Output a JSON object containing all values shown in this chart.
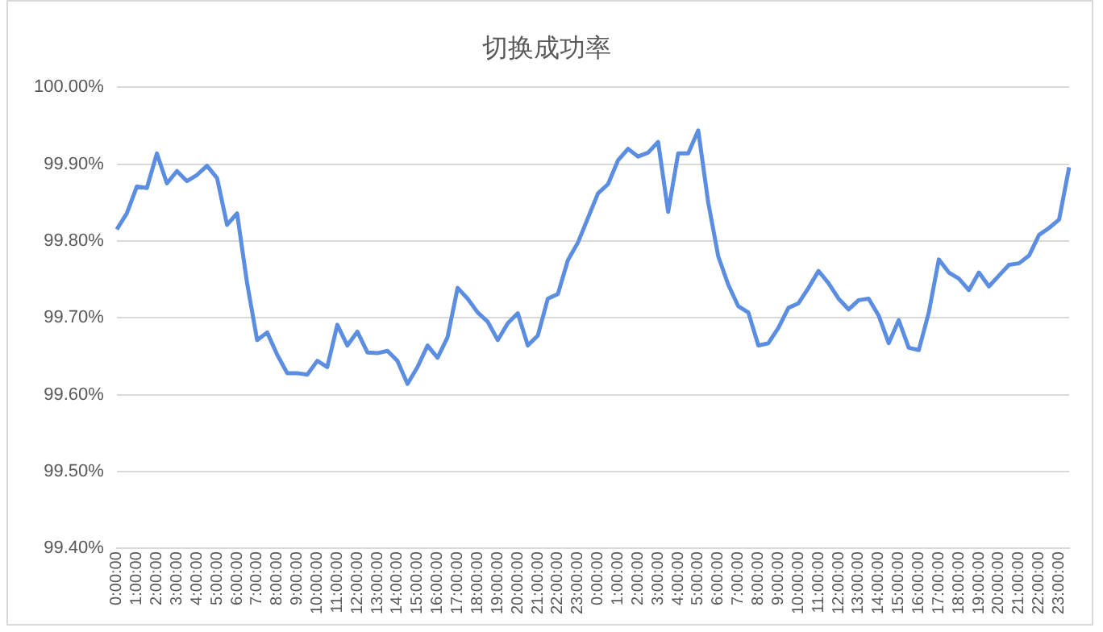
{
  "chart_data": {
    "type": "line",
    "title": "切换成功率",
    "categories": [
      "0:00:00",
      null,
      "1:00:00",
      null,
      "2:00:00",
      null,
      "3:00:00",
      null,
      "4:00:00",
      null,
      "5:00:00",
      null,
      "6:00:00",
      null,
      "7:00:00",
      null,
      "8:00:00",
      null,
      "9:00:00",
      null,
      "10:00:00",
      null,
      "11:00:00",
      null,
      "12:00:00",
      null,
      "13:00:00",
      null,
      "14:00:00",
      null,
      "15:00:00",
      null,
      "16:00:00",
      null,
      "17:00:00",
      null,
      "18:00:00",
      null,
      "19:00:00",
      null,
      "20:00:00",
      null,
      "21:00:00",
      null,
      "22:00:00",
      null,
      "23:00:00",
      null,
      "0:00:00",
      null,
      "1:00:00",
      null,
      "2:00:00",
      null,
      "3:00:00",
      null,
      "4:00:00",
      null,
      "5:00:00",
      null,
      "6:00:00",
      null,
      "7:00:00",
      null,
      "8:00:00",
      null,
      "9:00:00",
      null,
      "10:00:00",
      null,
      "11:00:00",
      null,
      "12:00:00",
      null,
      "13:00:00",
      null,
      "14:00:00",
      null,
      "15:00:00",
      null,
      "16:00:00",
      null,
      "17:00:00",
      null,
      "18:00:00",
      null,
      "19:00:00",
      null,
      "20:00:00",
      null,
      "21:00:00",
      null,
      "22:00:00",
      null,
      "23:00:00",
      null
    ],
    "series": [
      {
        "color": "#5b8ee0",
        "values": [
          99.815,
          99.836,
          99.871,
          99.869,
          99.914,
          99.875,
          99.891,
          99.878,
          99.886,
          99.898,
          99.882,
          99.821,
          99.836,
          99.745,
          99.671,
          99.681,
          99.652,
          99.628,
          99.628,
          99.626,
          99.644,
          99.636,
          99.691,
          99.664,
          99.682,
          99.655,
          99.654,
          99.657,
          99.644,
          99.614,
          99.636,
          99.664,
          99.648,
          99.675,
          99.739,
          99.725,
          99.707,
          99.695,
          99.671,
          99.693,
          99.706,
          99.664,
          99.677,
          99.725,
          99.731,
          99.775,
          99.798,
          99.83,
          99.862,
          99.874,
          99.905,
          99.92,
          99.91,
          99.915,
          99.929,
          99.838,
          99.914,
          99.914,
          99.944,
          99.85,
          99.78,
          99.743,
          99.715,
          99.707,
          99.664,
          99.667,
          99.687,
          99.713,
          99.719,
          99.739,
          99.761,
          99.745,
          99.725,
          99.711,
          99.723,
          99.725,
          99.703,
          99.667,
          99.697,
          99.661,
          99.658,
          99.707,
          99.776,
          99.759,
          99.751,
          99.736,
          99.759,
          99.741,
          99.755,
          99.769,
          99.771,
          99.781,
          99.808,
          99.817,
          99.828,
          99.896
        ]
      }
    ],
    "ylim": [
      99.4,
      100.0
    ],
    "yticks": [
      {
        "value": 99.4,
        "label": "99.40%"
      },
      {
        "value": 99.5,
        "label": "99.50%"
      },
      {
        "value": 99.6,
        "label": "99.60%"
      },
      {
        "value": 99.7,
        "label": "99.70%"
      },
      {
        "value": 99.8,
        "label": "99.80%"
      },
      {
        "value": 99.9,
        "label": "99.90%"
      },
      {
        "value": 100.0,
        "label": "100.00%"
      }
    ],
    "grid": "y",
    "legend": false,
    "marker": "none",
    "line_style": "solid"
  }
}
